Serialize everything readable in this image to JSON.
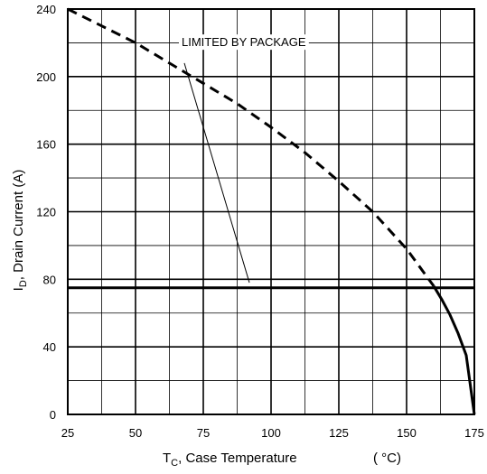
{
  "chart_data": {
    "type": "line",
    "title": "",
    "xlabel": {
      "main": "T",
      "sub": "C",
      "rest": ", Case Temperature"
    },
    "xunit": "( °C)",
    "ylabel": {
      "main": "I",
      "sub": "D",
      "rest": ", Drain Current (A)"
    },
    "xlim": [
      25,
      175
    ],
    "ylim": [
      0,
      240
    ],
    "xticks": [
      25,
      50,
      75,
      100,
      125,
      150,
      175
    ],
    "yticks": [
      0,
      40,
      80,
      120,
      160,
      200,
      240
    ],
    "x_minor_step": 12.5,
    "y_minor_step": 20,
    "grid": true,
    "series": [
      {
        "style": "dashed",
        "x": [
          25,
          37.5,
          50,
          62.5,
          75,
          87.5,
          100,
          112.5,
          125,
          137.5,
          150,
          160
        ],
        "y": [
          240,
          230,
          220,
          208,
          196,
          184,
          170,
          155,
          138,
          120,
          98,
          76
        ]
      },
      {
        "style": "solid",
        "x": [
          160,
          163,
          166,
          169,
          172,
          175
        ],
        "y": [
          76,
          68,
          59,
          48,
          35,
          0
        ]
      },
      {
        "style": "solid",
        "x": [
          25,
          175
        ],
        "y": [
          75,
          75
        ]
      }
    ],
    "annotations": [
      {
        "text": "LIMITED BY PACKAGE",
        "text_at": [
          67,
          218
        ],
        "arrow_from": [
          68,
          208
        ],
        "arrow_to": [
          92,
          78
        ]
      }
    ]
  }
}
